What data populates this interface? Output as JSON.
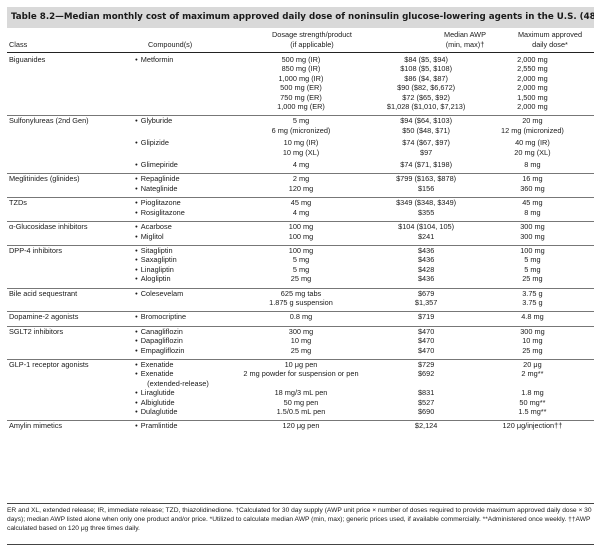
{
  "title": "Table 8.2—Median monthly cost of maximum approved daily dose of noninsulin glucose-lowering agents in the U.S. (48)",
  "headers": {
    "class": "Class",
    "compounds": "Compound(s)",
    "dosage_line1": "Dosage strength/product",
    "dosage_line2": "(if applicable)",
    "awp_line1": "Median AWP",
    "awp_line2": "(min, max)†",
    "max_line1": "Maximum approved",
    "max_line2": "daily dose*"
  },
  "groups": [
    {
      "class": "Biguanides",
      "rows": [
        {
          "compound": "Metformin",
          "dose": "500 mg (IR)",
          "awp": "$84 ($5, $94)",
          "max": "2,000 mg"
        },
        {
          "compound": "",
          "dose": "850 mg (IR)",
          "awp": "$108 ($5, $108)",
          "max": "2,550 mg"
        },
        {
          "compound": "",
          "dose": "1,000 mg (IR)",
          "awp": "$86 ($4, $87)",
          "max": "2,000 mg"
        },
        {
          "compound": "",
          "dose": "500 mg (ER)",
          "awp": "$90 ($82, $6,672)",
          "max": "2,000 mg"
        },
        {
          "compound": "",
          "dose": "750 mg (ER)",
          "awp": "$72 ($65, $92)",
          "max": "1,500 mg"
        },
        {
          "compound": "",
          "dose": "1,000 mg (ER)",
          "awp": "$1,028 ($1,010, $7,213)",
          "max": "2,000 mg"
        }
      ]
    },
    {
      "class": "Sulfonylureas (2nd Gen)",
      "rows": [
        {
          "compound": "Glyburide",
          "dose": "5 mg",
          "awp": "$94 ($64, $103)",
          "max": "20 mg"
        },
        {
          "compound": "",
          "dose": "6 mg (micronized)",
          "awp": "$50 ($48, $71)",
          "max": "12 mg (micronized)"
        },
        {
          "gap": true
        },
        {
          "compound": "Glipizide",
          "dose": "10 mg (IR)",
          "awp": "$74 ($67, $97)",
          "max": "40 mg (IR)"
        },
        {
          "compound": "",
          "dose": "10 mg (XL)",
          "awp": "$97",
          "max": "20 mg (XL)"
        },
        {
          "gap": true
        },
        {
          "compound": "Glimepiride",
          "dose": "4 mg",
          "awp": "$74 ($71, $198)",
          "max": "8 mg"
        }
      ]
    },
    {
      "class": "Meglitinides (glinides)",
      "rows": [
        {
          "compound": "Repaglinide",
          "dose": "2 mg",
          "awp": "$799 ($163, $878)",
          "max": "16 mg"
        },
        {
          "compound": "Nateglinide",
          "dose": "120 mg",
          "awp": "$156",
          "max": "360 mg"
        }
      ]
    },
    {
      "class": "TZDs",
      "rows": [
        {
          "compound": "Pioglitazone",
          "dose": "45 mg",
          "awp": "$349 ($348, $349)",
          "max": "45 mg"
        },
        {
          "compound": "Rosiglitazone",
          "dose": "4 mg",
          "awp": "$355",
          "max": "8 mg"
        }
      ]
    },
    {
      "class": "α-Glucosidase inhibitors",
      "rows": [
        {
          "compound": "Acarbose",
          "dose": "100 mg",
          "awp": "$104 ($104, 105)",
          "max": "300 mg"
        },
        {
          "compound": "Miglitol",
          "dose": "100 mg",
          "awp": "$241",
          "max": "300 mg"
        }
      ]
    },
    {
      "class": "DPP-4 inhibitors",
      "rows": [
        {
          "compound": "Sitagliptin",
          "dose": "100 mg",
          "awp": "$436",
          "max": "100 mg"
        },
        {
          "compound": "Saxagliptin",
          "dose": "5 mg",
          "awp": "$436",
          "max": "5 mg"
        },
        {
          "compound": "Linagliptin",
          "dose": "5 mg",
          "awp": "$428",
          "max": "5 mg"
        },
        {
          "compound": "Alogliptin",
          "dose": "25 mg",
          "awp": "$436",
          "max": "25 mg"
        }
      ]
    },
    {
      "class": "Bile acid sequestrant",
      "rows": [
        {
          "compound": "Colesevelam",
          "dose": "625 mg tabs",
          "awp": "$679",
          "max": "3.75 g"
        },
        {
          "compound": "",
          "dose": "1.875 g suspension",
          "awp": "$1,357",
          "max": "3.75 g"
        }
      ]
    },
    {
      "class": "Dopamine-2 agonists",
      "rows": [
        {
          "compound": "Bromocriptine",
          "dose": "0.8 mg",
          "awp": "$719",
          "max": "4.8 mg"
        }
      ]
    },
    {
      "class": "SGLT2 inhibitors",
      "rows": [
        {
          "compound": "Canagliflozin",
          "dose": "300 mg",
          "awp": "$470",
          "max": "300 mg"
        },
        {
          "compound": "Dapagliflozin",
          "dose": "10 mg",
          "awp": "$470",
          "max": "10 mg"
        },
        {
          "compound": "Empagliflozin",
          "dose": "25 mg",
          "awp": "$470",
          "max": "25 mg"
        }
      ]
    },
    {
      "class": "GLP-1 receptor agonists",
      "rows": [
        {
          "compound": "Exenatide",
          "dose": "10 μg pen",
          "awp": "$729",
          "max": "20 μg"
        },
        {
          "compound": "Exenatide",
          "dose": "2 mg powder for suspension or pen",
          "awp": "$692",
          "max": "2 mg**"
        },
        {
          "compound": "(extended-release)",
          "continued": true,
          "dose": "",
          "awp": "",
          "max": ""
        },
        {
          "compound": "Liraglutide",
          "dose": "18 mg/3 mL pen",
          "awp": "$831",
          "max": "1.8 mg"
        },
        {
          "compound": "Albiglutide",
          "dose": "50 mg pen",
          "awp": "$527",
          "max": "50 mg**"
        },
        {
          "compound": "Dulaglutide",
          "dose": "1.5/0.5 mL pen",
          "awp": "$690",
          "max": "1.5 mg**"
        }
      ]
    },
    {
      "class": "Amylin mimetics",
      "rows": [
        {
          "compound": "Pramlintide",
          "dose": "120 μg pen",
          "awp": "$2,124",
          "max": "120 μg/injection††"
        }
      ]
    }
  ],
  "footnote": "ER and XL, extended release; IR, immediate release; TZD, thiazolidinedione. †Calculated for 30 day supply (AWP unit price × number of doses required to provide maximum approved daily dose × 30 days); median AWP listed alone when only one product and/or price. *Utilized to calculate median AWP (min, max); generic prices used, if available commercially. **Administered once weekly. ††AWP calculated based on 120 μg three times daily."
}
